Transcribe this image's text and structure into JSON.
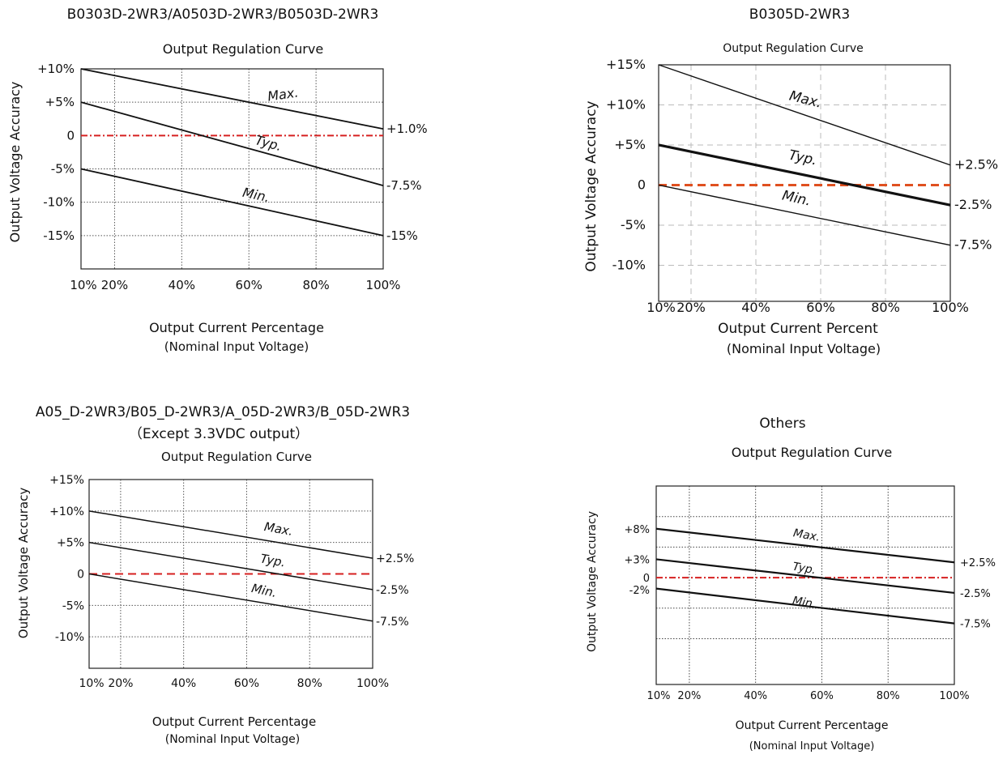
{
  "chart_data": [
    {
      "type": "line",
      "heading": "B0303D-2WR3/A0503D-2WR3/B0503D-2WR3",
      "heading2": "",
      "title": "Output Regulation Curve",
      "ylabel": "Output Voltage Accuracy",
      "xlabel": "Output Current Percentage",
      "xlabel2": "(Nominal Input Voltage)",
      "x_ticks": [
        "10%",
        "20%",
        "40%",
        "60%",
        "80%",
        "100%"
      ],
      "x_tick_values": [
        10,
        20,
        40,
        60,
        80,
        100
      ],
      "y_ticks": [
        "+10%",
        "+5%",
        "0",
        "-5%",
        "-10%",
        "-15%"
      ],
      "y_tick_values": [
        10,
        5,
        0,
        -5,
        -10,
        -15
      ],
      "xlim": [
        10,
        100
      ],
      "ylim": [
        -20,
        10
      ],
      "grid": true,
      "series": [
        {
          "name": "Max.",
          "x": [
            10,
            100
          ],
          "y": [
            10,
            1
          ]
        },
        {
          "name": "Typ.",
          "x": [
            10,
            100
          ],
          "y": [
            5,
            -7.5
          ]
        },
        {
          "name": "Min.",
          "x": [
            10,
            100
          ],
          "y": [
            -5,
            -15
          ]
        }
      ],
      "end_labels": [
        "+1.0%",
        "-7.5%",
        "-15%"
      ],
      "reference_line": {
        "y": 0,
        "color": "#d62020",
        "style": "dash-dot"
      }
    },
    {
      "type": "line",
      "heading": "B0305D-2WR3",
      "heading2": "",
      "title": "Output Regulation Curve",
      "ylabel": "Output Voltage Accuracy",
      "xlabel": "Output Current Percent",
      "xlabel2": "(Nominal Input Voltage)",
      "x_ticks": [
        "10%",
        "20%",
        "40%",
        "60%",
        "80%",
        "100%"
      ],
      "x_tick_values": [
        10,
        20,
        40,
        60,
        80,
        100
      ],
      "y_ticks": [
        "+15%",
        "+10%",
        "+5%",
        "0",
        "-5%",
        "-10%"
      ],
      "y_tick_values": [
        15,
        10,
        5,
        0,
        -5,
        -10
      ],
      "xlim": [
        10,
        100
      ],
      "ylim": [
        -14.5,
        15
      ],
      "grid": true,
      "series": [
        {
          "name": "Max.",
          "x": [
            10,
            100
          ],
          "y": [
            15,
            2.5
          ]
        },
        {
          "name": "Typ.",
          "x": [
            10,
            100
          ],
          "y": [
            5,
            -2.5
          ]
        },
        {
          "name": "Min.",
          "x": [
            10,
            100
          ],
          "y": [
            0,
            -7.5
          ]
        }
      ],
      "end_labels": [
        "+2.5%",
        "-2.5%",
        "-7.5%"
      ],
      "reference_line": {
        "y": 0,
        "color": "#e05020",
        "style": "dashed"
      }
    },
    {
      "type": "line",
      "heading": "A05_D-2WR3/B05_D-2WR3/A_05D-2WR3/B_05D-2WR3",
      "heading2": "（Except 3.3VDC output）",
      "title": "Output Regulation Curve",
      "ylabel": "Output Voltage Accuracy",
      "xlabel": "Output Current Percentage",
      "xlabel2": "(Nominal Input Voltage)",
      "x_ticks": [
        "10%",
        "20%",
        "40%",
        "60%",
        "80%",
        "100%"
      ],
      "x_tick_values": [
        10,
        20,
        40,
        60,
        80,
        100
      ],
      "y_ticks": [
        "+15%",
        "+10%",
        "+5%",
        "0",
        "-5%",
        "-10%"
      ],
      "y_tick_values": [
        15,
        10,
        5,
        0,
        -5,
        -10
      ],
      "xlim": [
        10,
        100
      ],
      "ylim": [
        -15,
        15
      ],
      "grid": true,
      "series": [
        {
          "name": "Max.",
          "x": [
            10,
            100
          ],
          "y": [
            10,
            2.5
          ]
        },
        {
          "name": "Typ.",
          "x": [
            10,
            100
          ],
          "y": [
            5,
            -2.5
          ]
        },
        {
          "name": "Min.",
          "x": [
            10,
            100
          ],
          "y": [
            0,
            -7.5
          ]
        }
      ],
      "end_labels": [
        "+2.5%",
        "-2.5%",
        "-7.5%"
      ],
      "reference_line": {
        "y": 0,
        "color": "#d62020",
        "style": "dashed"
      }
    },
    {
      "type": "line",
      "heading": "Others",
      "heading2": "",
      "title": "Output Regulation Curve",
      "ylabel": "Output Voltage Accuracy",
      "xlabel": "Output Current Percentage",
      "xlabel2": "(Nominal Input Voltage)",
      "x_ticks": [
        "10%",
        "20%",
        "40%",
        "60%",
        "80%",
        "100%"
      ],
      "x_tick_values": [
        10,
        20,
        40,
        60,
        80,
        100
      ],
      "y_ticks": [
        "+8%",
        "+3%",
        "0",
        "-2%"
      ],
      "y_tick_values": [
        8,
        3,
        0,
        -2
      ],
      "y_grid_values": [
        10,
        5,
        0,
        -5,
        -10
      ],
      "xlim": [
        10,
        100
      ],
      "ylim": [
        -17.5,
        15
      ],
      "grid": true,
      "series": [
        {
          "name": "Max.",
          "x": [
            10,
            100
          ],
          "y": [
            8,
            2.5
          ]
        },
        {
          "name": "Typ.",
          "x": [
            10,
            100
          ],
          "y": [
            3,
            -2.5
          ]
        },
        {
          "name": "Min.",
          "x": [
            10,
            100
          ],
          "y": [
            -1.8,
            -7.5
          ]
        }
      ],
      "end_labels": [
        "+2.5%",
        "-2.5%",
        "-7.5%"
      ],
      "reference_line": {
        "y": 0,
        "color": "#d62020",
        "style": "dash-dot"
      }
    }
  ]
}
